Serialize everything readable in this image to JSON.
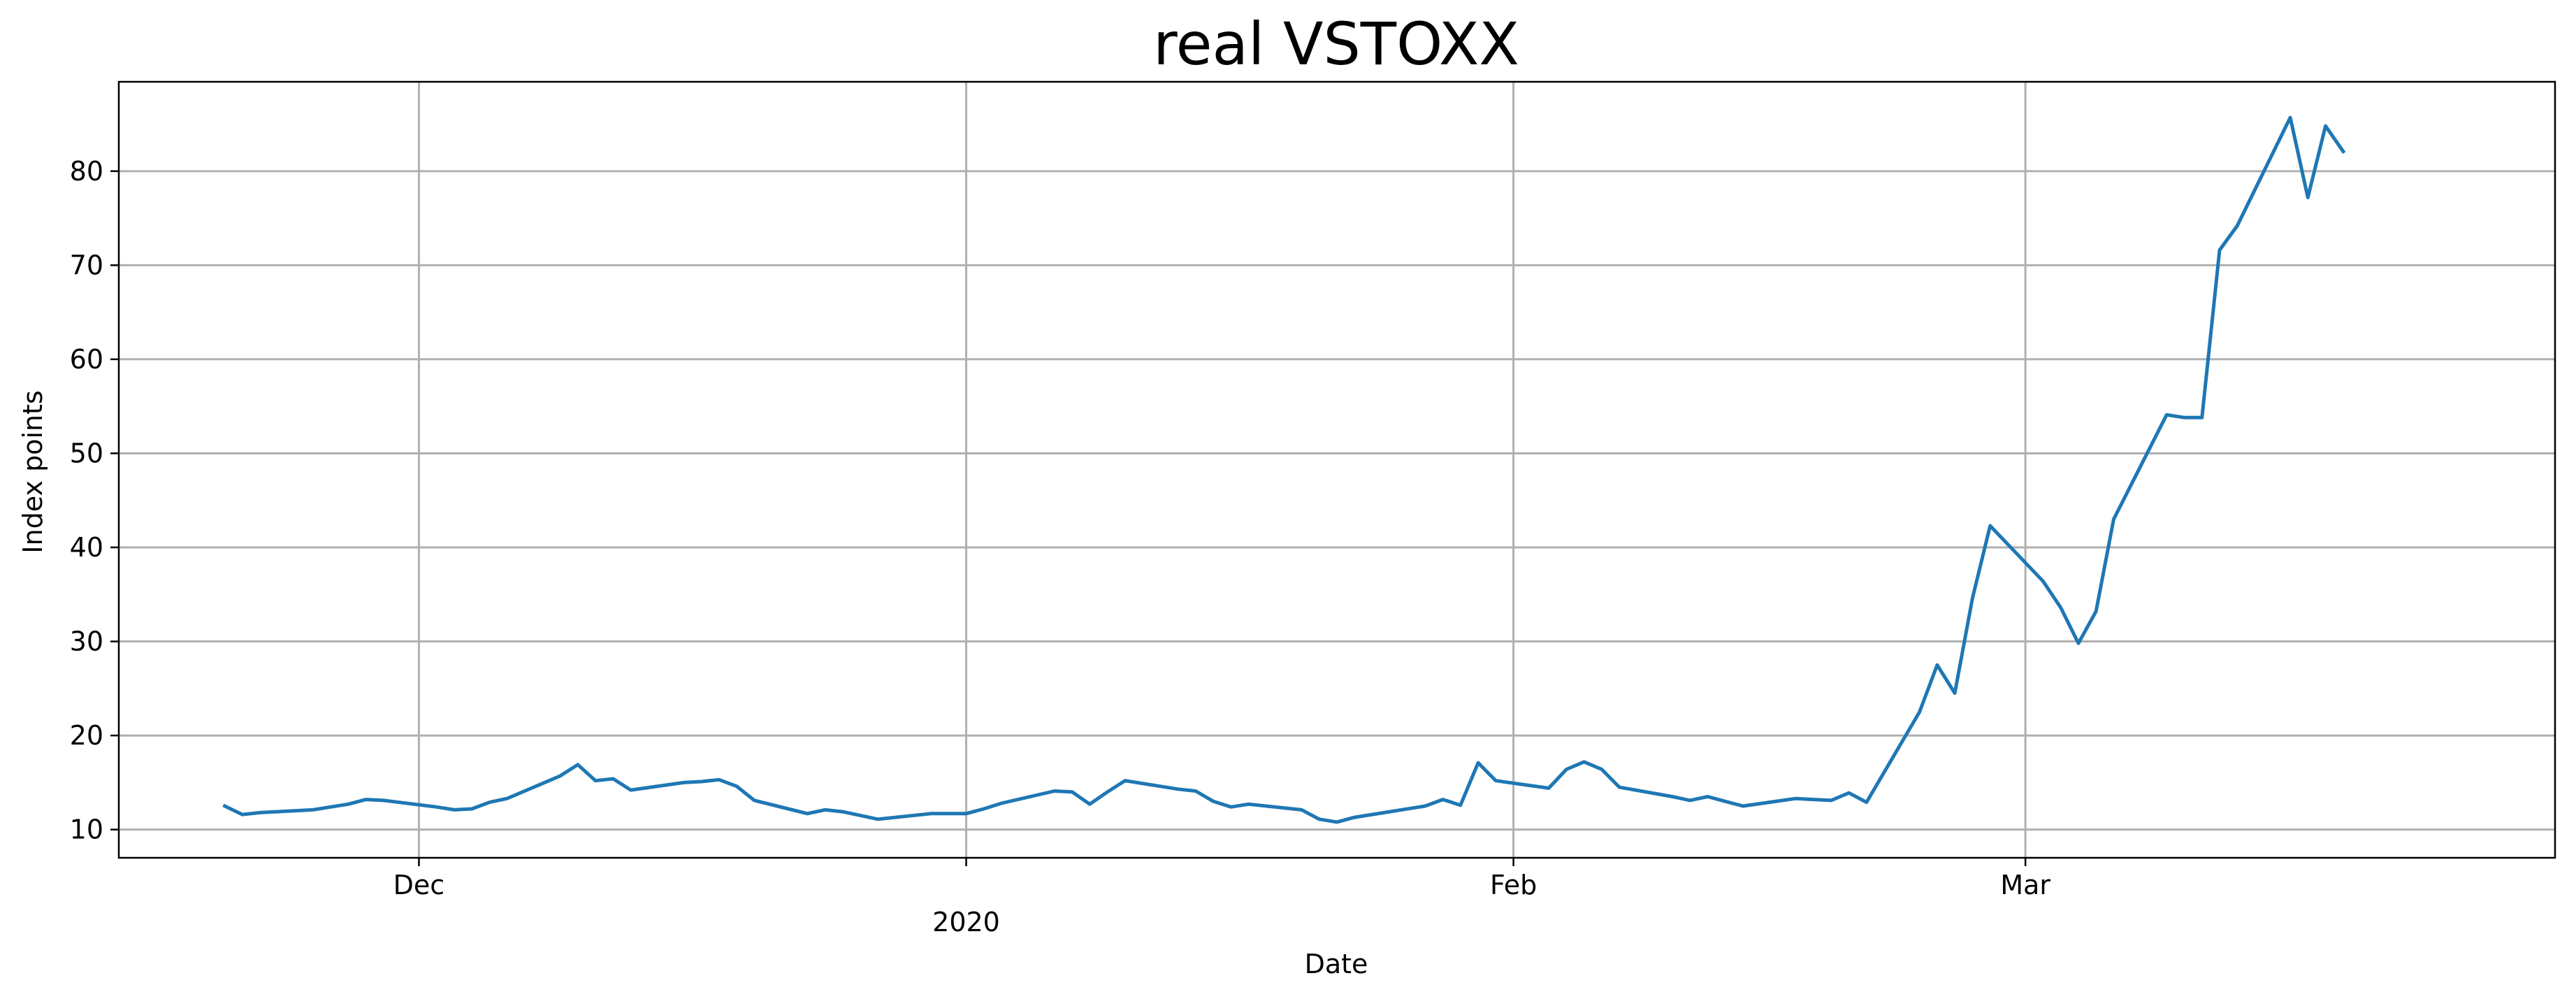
{
  "chart_data": {
    "type": "line",
    "title": "real VSTOXX",
    "xlabel": "Date",
    "ylabel": "Index points",
    "x_tick_labels": [
      "Dec",
      "2020",
      "Feb",
      "Mar"
    ],
    "x_ticks": [
      "2019-12-01",
      "2020-01-01",
      "2020-02-01",
      "2020-03-01"
    ],
    "xlim": [
      "2019-11-14",
      "2020-03-31"
    ],
    "y_ticks": [
      10,
      20,
      30,
      40,
      50,
      60,
      70,
      80
    ],
    "ylim": [
      7,
      89.5
    ],
    "grid": true,
    "line_color": "#1f77b4",
    "series": [
      {
        "x": [
          "2019-11-20",
          "2019-11-21",
          "2019-11-22",
          "2019-11-25",
          "2019-11-26",
          "2019-11-27",
          "2019-11-28",
          "2019-11-29",
          "2019-12-02",
          "2019-12-03",
          "2019-12-04",
          "2019-12-05",
          "2019-12-06",
          "2019-12-09",
          "2019-12-10",
          "2019-12-11",
          "2019-12-12",
          "2019-12-13",
          "2019-12-16",
          "2019-12-17",
          "2019-12-18",
          "2019-12-19",
          "2019-12-20",
          "2019-12-23",
          "2019-12-24",
          "2019-12-25",
          "2019-12-27",
          "2019-12-30",
          "2019-12-31",
          "2020-01-01",
          "2020-01-02",
          "2020-01-03",
          "2020-01-06",
          "2020-01-07",
          "2020-01-08",
          "2020-01-09",
          "2020-01-10",
          "2020-01-13",
          "2020-01-14",
          "2020-01-15",
          "2020-01-16",
          "2020-01-17",
          "2020-01-20",
          "2020-01-21",
          "2020-01-22",
          "2020-01-23",
          "2020-01-24",
          "2020-01-27",
          "2020-01-28",
          "2020-01-29",
          "2020-01-30",
          "2020-01-31",
          "2020-02-03",
          "2020-02-04",
          "2020-02-05",
          "2020-02-06",
          "2020-02-07",
          "2020-02-10",
          "2020-02-11",
          "2020-02-12",
          "2020-02-13",
          "2020-02-14",
          "2020-02-17",
          "2020-02-18",
          "2020-02-19",
          "2020-02-20",
          "2020-02-21",
          "2020-02-24",
          "2020-02-25",
          "2020-02-26",
          "2020-02-27",
          "2020-02-28",
          "2020-03-02",
          "2020-03-03",
          "2020-03-04",
          "2020-03-05",
          "2020-03-06",
          "2020-03-09",
          "2020-03-10",
          "2020-03-11",
          "2020-03-12",
          "2020-03-13",
          "2020-03-16",
          "2020-03-17",
          "2020-03-18",
          "2020-03-19"
        ],
        "values": [
          12.5,
          11.6,
          11.8,
          12.1,
          12.4,
          12.7,
          13.2,
          13.1,
          12.4,
          12.1,
          12.2,
          12.9,
          13.3,
          15.7,
          16.9,
          15.2,
          15.4,
          14.2,
          15.0,
          15.1,
          15.3,
          14.6,
          13.1,
          11.7,
          12.1,
          11.9,
          11.1,
          11.7,
          11.7,
          11.7,
          12.2,
          12.8,
          14.1,
          14.0,
          12.7,
          14.0,
          15.2,
          14.3,
          14.1,
          13.0,
          12.4,
          12.7,
          12.1,
          11.1,
          10.8,
          11.3,
          11.6,
          12.5,
          13.2,
          12.6,
          17.1,
          15.2,
          14.4,
          16.4,
          17.2,
          16.4,
          14.5,
          13.5,
          13.1,
          13.5,
          13.0,
          12.5,
          13.3,
          13.2,
          13.1,
          13.9,
          12.9,
          22.5,
          27.5,
          24.5,
          34.6,
          42.3,
          36.4,
          33.6,
          29.8,
          33.2,
          43.0,
          54.1,
          53.8,
          53.8,
          71.6,
          74.2,
          85.7,
          77.2,
          84.8,
          82.1
        ]
      }
    ]
  }
}
